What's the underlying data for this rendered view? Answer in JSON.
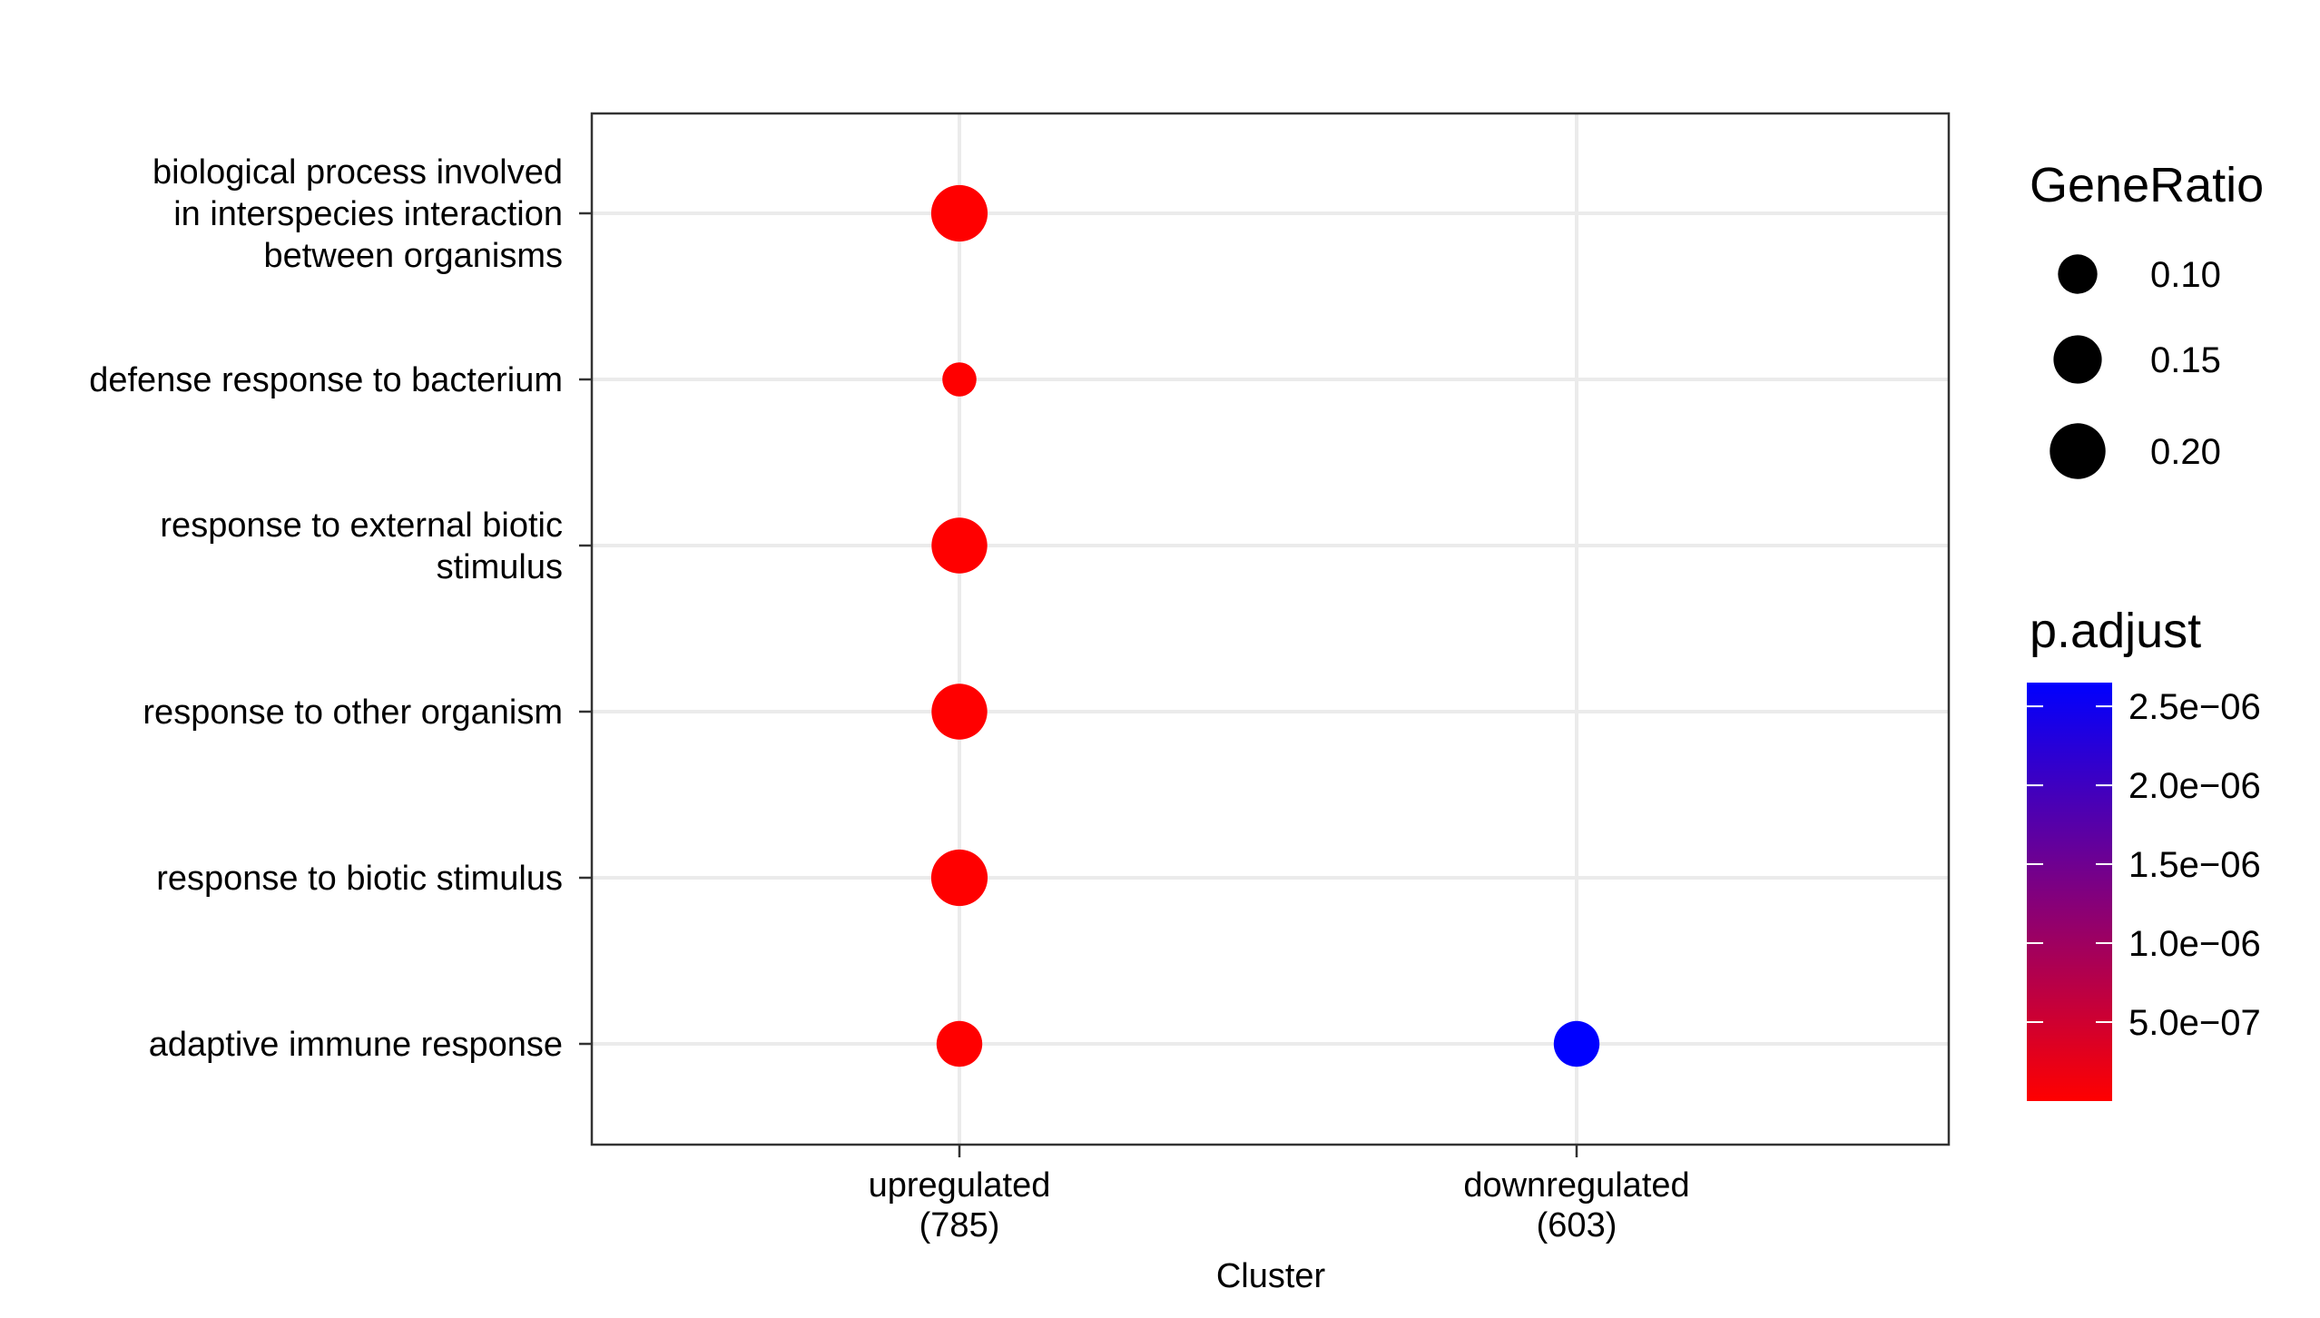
{
  "chart_data": {
    "type": "scatter",
    "xlabel": "Cluster",
    "ylabel": "",
    "categories_x": [
      "upregulated\n(785)",
      "downregulated\n(603)"
    ],
    "categories_y": [
      "biological process involved\nin interspecies interaction\nbetween organisms",
      "defense response to bacterium",
      "response to external biotic\nstimulus",
      "response to other organism",
      "response to biotic stimulus",
      "adaptive immune response"
    ],
    "points": [
      {
        "x": "upregulated\n(785)",
        "y": "biological process involved\nin interspecies interaction\nbetween organisms",
        "gene_ratio": 0.205,
        "p_adjust": 1e-12
      },
      {
        "x": "upregulated\n(785)",
        "y": "defense response to bacterium",
        "gene_ratio": 0.075,
        "p_adjust": 1e-12
      },
      {
        "x": "upregulated\n(785)",
        "y": "response to external biotic\nstimulus",
        "gene_ratio": 0.2,
        "p_adjust": 1e-12
      },
      {
        "x": "upregulated\n(785)",
        "y": "response to other organism",
        "gene_ratio": 0.2,
        "p_adjust": 1e-12
      },
      {
        "x": "upregulated\n(785)",
        "y": "response to biotic stimulus",
        "gene_ratio": 0.205,
        "p_adjust": 1e-12
      },
      {
        "x": "upregulated\n(785)",
        "y": "adaptive immune response",
        "gene_ratio": 0.135,
        "p_adjust": 1e-12
      },
      {
        "x": "downregulated\n(603)",
        "y": "adaptive immune response",
        "gene_ratio": 0.135,
        "p_adjust": 2.65e-06
      }
    ],
    "size_legend": {
      "title": "GeneRatio",
      "breaks": [
        0.1,
        0.15,
        0.2
      ],
      "labels": [
        "0.10",
        "0.15",
        "0.20"
      ]
    },
    "color_legend": {
      "title": "p.adjust",
      "low_color": "#FF0000",
      "high_color": "#0000FF",
      "limits": [
        0,
        2.65e-06
      ],
      "breaks": [
        5e-07,
        1e-06,
        1.5e-06,
        2e-06,
        2.5e-06
      ],
      "labels": [
        "5.0e−07",
        "1.0e−06",
        "1.5e−06",
        "2.0e−06",
        "2.5e−06"
      ]
    },
    "grid": true,
    "legend_position": "right"
  }
}
